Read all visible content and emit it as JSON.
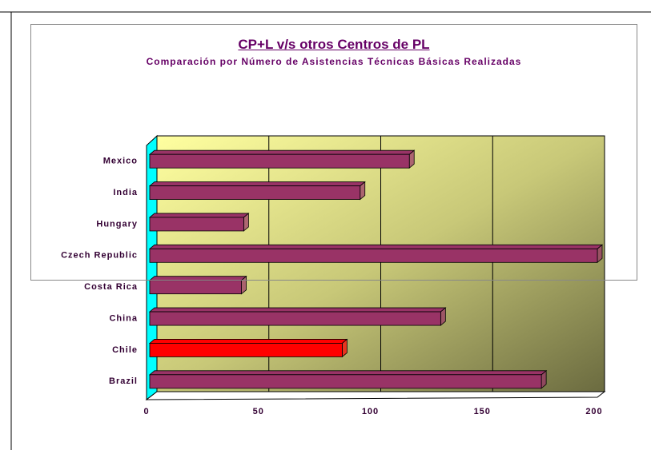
{
  "chart_data": {
    "type": "bar3d_horizontal",
    "title": "CP+L v/s otros Centros de PL",
    "subtitle": "Comparación por Número de Asistencias Técnicas Básicas Realizadas",
    "categories": [
      "Brazil",
      "Chile",
      "China",
      "Costa Rica",
      "Czech Republic",
      "Hungary",
      "India",
      "Mexico"
    ],
    "values": [
      175,
      86,
      130,
      41,
      200,
      42,
      94,
      116
    ],
    "colors": [
      "#993366",
      "#ff0000",
      "#993366",
      "#993366",
      "#993366",
      "#993366",
      "#993366",
      "#993366"
    ],
    "xlim": [
      0,
      200
    ],
    "xticks": [
      0,
      50,
      100,
      150,
      200
    ],
    "grid": true
  }
}
